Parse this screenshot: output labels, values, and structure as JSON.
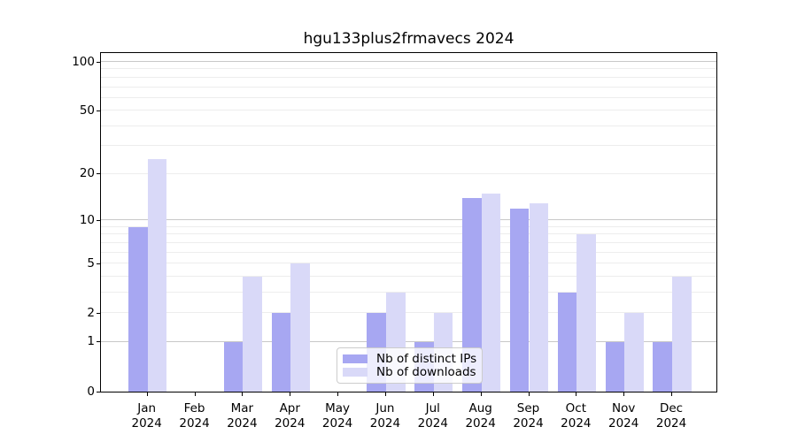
{
  "title": "hgu133plus2frmavecs 2024",
  "legend": {
    "items": [
      {
        "label": "Nb of distinct IPs",
        "color": "#a7a7f2"
      },
      {
        "label": "Nb of downloads",
        "color": "#d9d9f8"
      }
    ]
  },
  "chart_data": {
    "type": "bar",
    "title": "hgu133plus2frmavecs 2024",
    "categories": [
      "Jan",
      "Feb",
      "Mar",
      "Apr",
      "May",
      "Jun",
      "Jul",
      "Aug",
      "Sep",
      "Oct",
      "Nov",
      "Dec"
    ],
    "year_label": "2024",
    "series": [
      {
        "name": "Nb of distinct IPs",
        "color": "#a7a7f2",
        "values": [
          9,
          0,
          1,
          2,
          0,
          2,
          1,
          14,
          12,
          3,
          1,
          1
        ]
      },
      {
        "name": "Nb of downloads",
        "color": "#d9d9f8",
        "values": [
          25,
          0,
          4,
          5,
          0,
          3,
          2,
          15,
          13,
          8,
          2,
          4
        ]
      }
    ],
    "yticks": [
      0,
      1,
      2,
      5,
      10,
      20,
      50,
      100
    ],
    "y_scale": "log1p",
    "ylim": [
      0,
      115
    ],
    "xlabel": "",
    "ylabel": "",
    "grid": "horizontal",
    "legend_position": "lower center"
  }
}
